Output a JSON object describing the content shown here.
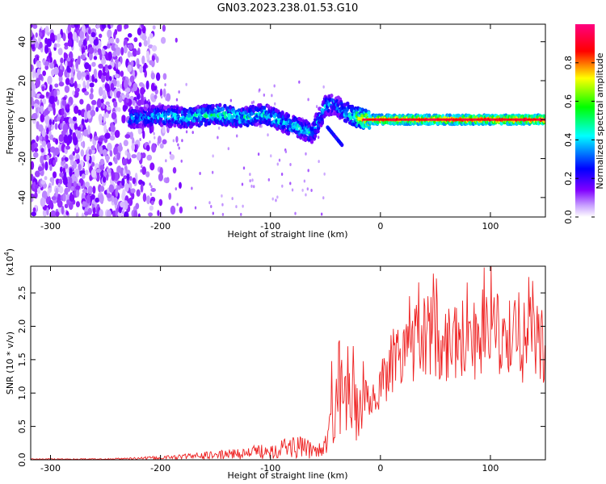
{
  "title": "GN03.2023.238.01.53.G10",
  "chart_data": [
    {
      "type": "heatmap",
      "xlabel": "Height of straight line (km)",
      "ylabel": "Frequency (Hz)",
      "xlim": [
        -318,
        150
      ],
      "ylim": [
        -50,
        49
      ],
      "x_ticks": [
        -300,
        -200,
        -100,
        0,
        100
      ],
      "y_ticks": [
        -40,
        -20,
        0,
        20,
        40
      ],
      "colorbar": {
        "label": "Normalized spectral amplitude",
        "range": [
          0.0,
          1.0
        ],
        "ticks": [
          "0.0",
          "0.2",
          "0.4",
          "0.6",
          "0.8"
        ],
        "colors": [
          "#ffffff",
          "#8000ff",
          "#0000ff",
          "#00ffff",
          "#00ff00",
          "#ffff00",
          "#ff0000",
          "#ff0080"
        ]
      },
      "ridge": {
        "x": [
          -225,
          -200,
          -175,
          -150,
          -125,
          -105,
          -95,
          -85,
          -75,
          -62,
          -50,
          -42,
          -35,
          -25,
          -15,
          0,
          150
        ],
        "frequency": [
          1,
          2,
          1,
          3,
          1,
          3,
          0,
          -2,
          -4,
          -7,
          7,
          8,
          5,
          2,
          0,
          0,
          0
        ],
        "amplitude": [
          0.35,
          0.4,
          0.45,
          0.5,
          0.45,
          0.45,
          0.45,
          0.4,
          0.45,
          0.4,
          0.4,
          0.35,
          0.4,
          0.5,
          0.75,
          0.85,
          0.9
        ]
      },
      "noise_edge": -190,
      "spur": {
        "x": [
          -48,
          -35
        ],
        "frequency": [
          -4,
          -13
        ]
      }
    },
    {
      "type": "line",
      "xlabel": "Height of straight line (km)",
      "ylabel": "SNR (10 * v/v)",
      "ylabel_multiplier": "(x10",
      "ylabel_exponent": "4",
      "ylabel_close": ")",
      "xlim": [
        -318,
        150
      ],
      "ylim": [
        0,
        2.9
      ],
      "x_ticks": [
        -300,
        -200,
        -100,
        0,
        100
      ],
      "y_ticks": [
        "0.0",
        "0.5",
        "1.0",
        "1.5",
        "2.0",
        "2.5"
      ],
      "y_tick_values": [
        0,
        0.5,
        1.0,
        1.5,
        2.0,
        2.5
      ],
      "color": "#ee2222",
      "x": [
        -318,
        -250,
        -200,
        -150,
        -120,
        -100,
        -80,
        -60,
        -50,
        -40,
        -35,
        -30,
        -25,
        -20,
        -10,
        0,
        10,
        20,
        30,
        40,
        60,
        80,
        90,
        100,
        120,
        140,
        150
      ],
      "y": [
        0.01,
        0.01,
        0.03,
        0.07,
        0.1,
        0.15,
        0.2,
        0.15,
        0.2,
        0.7,
        0.9,
        0.8,
        0.7,
        0.9,
        0.9,
        1.1,
        1.5,
        1.7,
        1.75,
        1.85,
        1.8,
        1.85,
        1.8,
        1.85,
        1.8,
        1.7,
        1.75
      ]
    }
  ]
}
